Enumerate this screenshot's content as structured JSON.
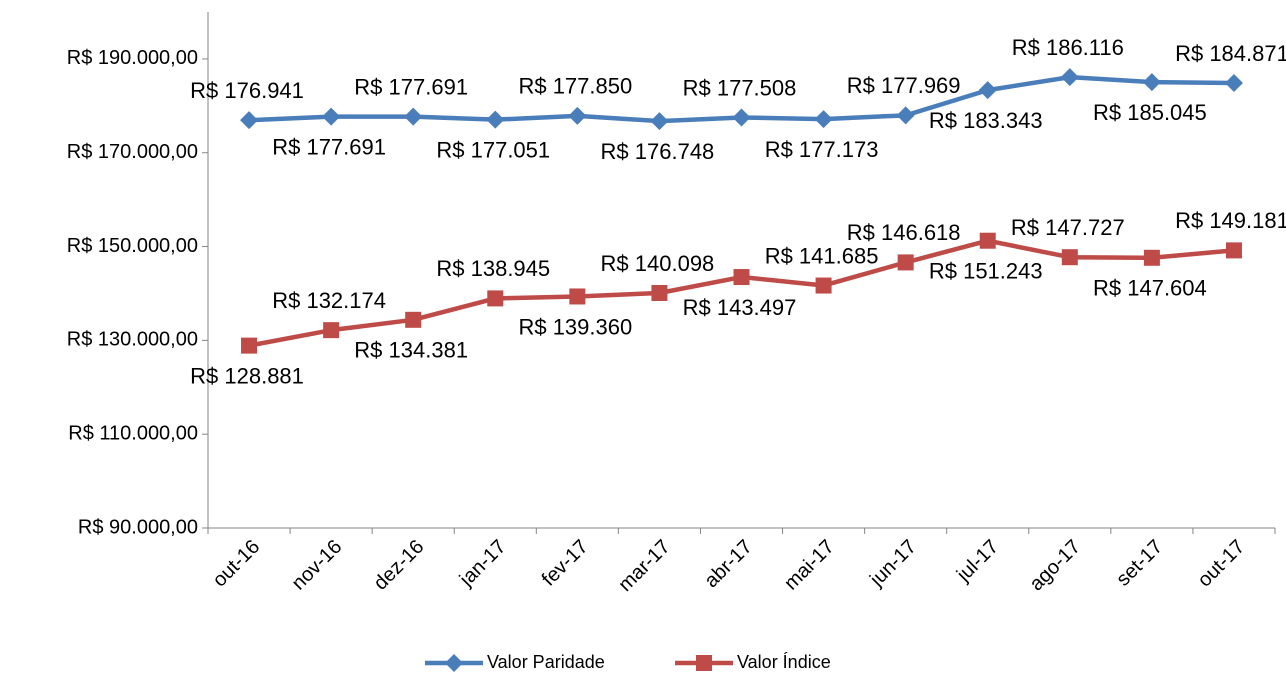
{
  "chart_data": {
    "type": "line",
    "categories": [
      "out-16",
      "nov-16",
      "dez-16",
      "jan-17",
      "fev-17",
      "mar-17",
      "abr-17",
      "mai-17",
      "jun-17",
      "jul-17",
      "ago-17",
      "set-17",
      "out-17"
    ],
    "series": [
      {
        "name": "Valor Paridade",
        "color": "#4a7ebb",
        "marker": "diamond",
        "values": [
          176941,
          177691,
          177691,
          177051,
          177850,
          176748,
          177508,
          177173,
          177969,
          183343,
          186116,
          185045,
          184871
        ],
        "value_labels": [
          "R$ 176.941",
          "R$ 177.691",
          "R$ 177.691",
          "R$ 177.051",
          "R$ 177.850",
          "R$ 176.748",
          "R$ 177.508",
          "R$ 177.173",
          "R$ 177.969",
          "R$ 183.343",
          "R$ 186.116",
          "R$ 185.045",
          "R$ 184.871"
        ]
      },
      {
        "name": "Valor Índice",
        "color": "#be4b48",
        "marker": "square",
        "values": [
          128881,
          132174,
          134381,
          138945,
          139360,
          140098,
          143497,
          141685,
          146618,
          151243,
          147727,
          147604,
          149181
        ],
        "value_labels": [
          "R$ 128.881",
          "R$ 132.174",
          "R$ 134.381",
          "R$ 138.945",
          "R$ 139.360",
          "R$ 140.098",
          "R$ 143.497",
          "R$ 141.685",
          "R$ 146.618",
          "R$ 151.243",
          "R$ 147.727",
          "R$ 147.604",
          "R$ 149.181"
        ]
      }
    ],
    "ylim": [
      90000,
      200000
    ],
    "yticks": [
      {
        "value": 90000,
        "label": "R$ 90.000,00"
      },
      {
        "value": 110000,
        "label": "R$ 110.000,00"
      },
      {
        "value": 130000,
        "label": "R$ 130.000,00"
      },
      {
        "value": 150000,
        "label": "R$ 150.000,00"
      },
      {
        "value": 170000,
        "label": "R$ 170.000,00"
      },
      {
        "value": 190000,
        "label": "R$ 190.000,00"
      }
    ],
    "grid": false,
    "legend": "bottom"
  }
}
